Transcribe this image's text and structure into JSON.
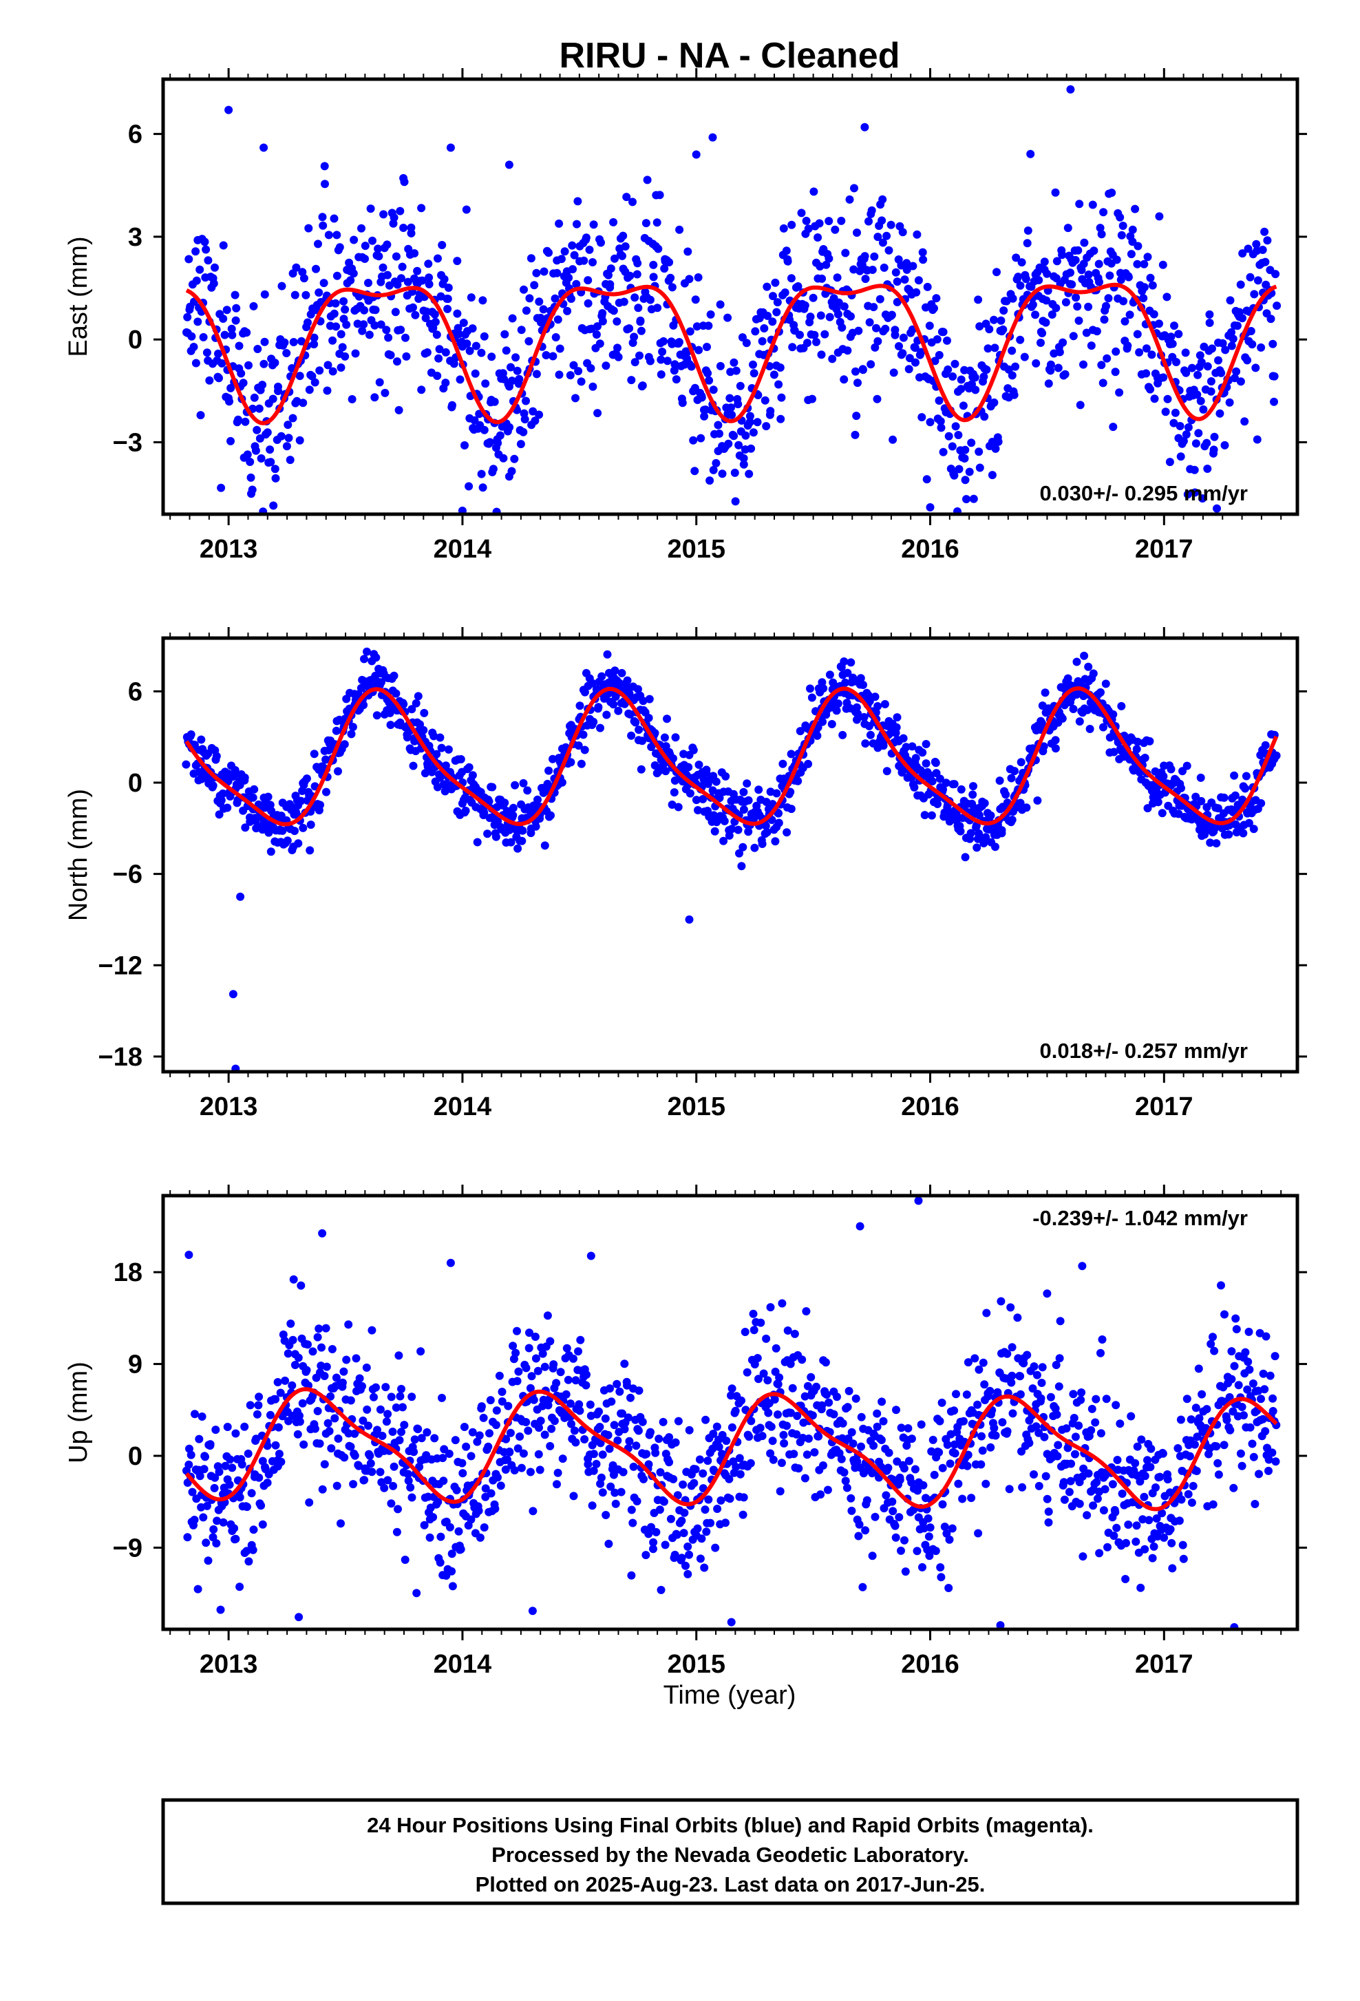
{
  "title": "RIRU  - NA - Cleaned",
  "footer": {
    "lines": [
      "24 Hour Positions Using Final Orbits (blue) and Rapid Orbits (magenta).",
      "Processed by the Nevada Geodetic Laboratory.",
      "Plotted on 2025-Aug-23. Last data on 2017-Jun-25."
    ]
  },
  "colors": {
    "points": "#0000ff",
    "model": "#ff0000",
    "frame": "#000000"
  },
  "chart_data": [
    {
      "type": "scatter",
      "ylabel": "East (mm)",
      "xlabel": "",
      "xlim": [
        2012.72,
        2017.57
      ],
      "ylim": [
        -5.1,
        7.6
      ],
      "yticks": [
        -3,
        0,
        3,
        6
      ],
      "ytick_labels": [
        "−3",
        "0",
        "3",
        "6"
      ],
      "xticks": [
        2013,
        2014,
        2015,
        2016,
        2017
      ],
      "xtick_labels": [
        "2013",
        "2014",
        "2015",
        "2016",
        "2017"
      ],
      "rate": "0.030+/- 0.295 mm/yr",
      "rate_position": "bottom-right",
      "grid": false,
      "series": [
        {
          "kind": "points",
          "x_range": [
            2012.82,
            2017.48
          ],
          "count": 1400,
          "scatter_sd": 1.4,
          "seed": 11,
          "outliers": [
            [
              2013.0,
              6.7
            ],
            [
              2013.15,
              5.6
            ],
            [
              2014.0,
              -5.0
            ],
            [
              2013.95,
              5.6
            ],
            [
              2014.2,
              5.1
            ],
            [
              2015.0,
              5.4
            ],
            [
              2015.07,
              5.9
            ],
            [
              2015.72,
              6.2
            ],
            [
              2016.6,
              7.3
            ],
            [
              2016.0,
              -4.9
            ],
            [
              2016.15,
              -4.1
            ],
            [
              2014.2,
              -4.0
            ]
          ]
        },
        {
          "kind": "model",
          "rate": 0.03,
          "offset": 0.2,
          "annual": [
            -1.1,
            -1.5
          ],
          "semiannual": [
            0.2,
            -0.7
          ],
          "x_range": [
            2012.82,
            2017.48
          ]
        }
      ]
    },
    {
      "type": "scatter",
      "ylabel": "North (mm)",
      "xlabel": "",
      "xlim": [
        2012.72,
        2017.57
      ],
      "ylim": [
        -19.0,
        9.5
      ],
      "yticks": [
        -18,
        -12,
        -6,
        0,
        6
      ],
      "ytick_labels": [
        "−18",
        "−12",
        "−6",
        "0",
        "6"
      ],
      "xticks": [
        2013,
        2014,
        2015,
        2016,
        2017
      ],
      "xtick_labels": [
        "2013",
        "2014",
        "2015",
        "2016",
        "2017"
      ],
      "rate": "0.018+/- 0.257 mm/yr",
      "rate_position": "bottom-right",
      "grid": false,
      "series": [
        {
          "kind": "points",
          "x_range": [
            2012.82,
            2017.48
          ],
          "count": 1400,
          "scatter_sd": 1.0,
          "seed": 23,
          "outliers": [
            [
              2013.02,
              -13.9
            ],
            [
              2013.03,
              -18.8
            ],
            [
              2014.97,
              -9.0
            ],
            [
              2013.05,
              -7.5
            ],
            [
              2016.15,
              -4.9
            ]
          ]
        },
        {
          "kind": "model",
          "rate": 0.018,
          "offset": 1.3,
          "annual": [
            -2.0,
            -3.6
          ],
          "semiannual": [
            0.4,
            0.9
          ],
          "x_range": [
            2012.82,
            2017.48
          ]
        }
      ]
    },
    {
      "type": "scatter",
      "ylabel": "Up (mm)",
      "xlabel": "Time (year)",
      "xlim": [
        2012.72,
        2017.57
      ],
      "ylim": [
        -17.0,
        25.5
      ],
      "yticks": [
        -9,
        0,
        9,
        18
      ],
      "ytick_labels": [
        "−9",
        "0",
        "9",
        "18"
      ],
      "xticks": [
        2013,
        2014,
        2015,
        2016,
        2017
      ],
      "xtick_labels": [
        "2013",
        "2014",
        "2015",
        "2016",
        "2017"
      ],
      "rate": "-0.239+/- 1.042 mm/yr",
      "rate_position": "top-right",
      "grid": false,
      "series": [
        {
          "kind": "points",
          "x_range": [
            2012.82,
            2017.48
          ],
          "count": 1450,
          "scatter_sd": 4.0,
          "seed": 37,
          "outliers": [
            [
              2012.83,
              19.7
            ],
            [
              2013.4,
              21.8
            ],
            [
              2013.95,
              18.9
            ],
            [
              2014.55,
              19.6
            ],
            [
              2015.7,
              22.5
            ],
            [
              2015.95,
              25.0
            ],
            [
              2016.5,
              15.9
            ],
            [
              2016.65,
              18.6
            ],
            [
              2015.15,
              -16.3
            ],
            [
              2016.3,
              -16.6
            ],
            [
              2017.3,
              -16.8
            ],
            [
              2013.3,
              -15.8
            ],
            [
              2014.3,
              -15.2
            ]
          ]
        },
        {
          "kind": "model",
          "rate": -0.239,
          "offset": 0.8,
          "annual": [
            -3.9,
            2.8
          ],
          "semiannual": [
            -1.4,
            -0.3
          ],
          "x_range": [
            2012.82,
            2017.48
          ]
        }
      ]
    }
  ]
}
